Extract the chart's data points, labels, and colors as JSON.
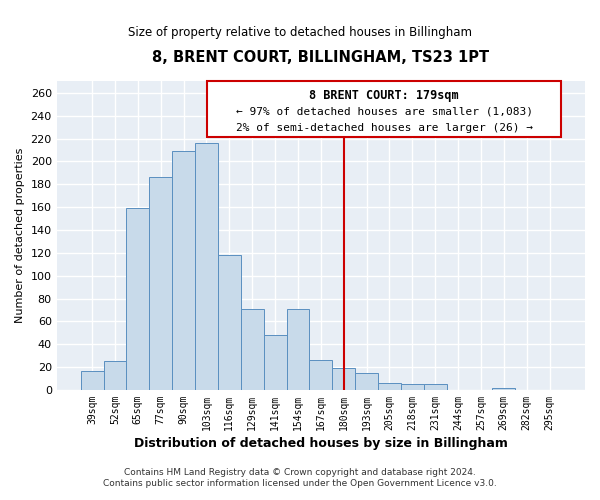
{
  "title": "8, BRENT COURT, BILLINGHAM, TS23 1PT",
  "subtitle": "Size of property relative to detached houses in Billingham",
  "xlabel": "Distribution of detached houses by size in Billingham",
  "ylabel": "Number of detached properties",
  "bar_labels": [
    "39sqm",
    "52sqm",
    "65sqm",
    "77sqm",
    "90sqm",
    "103sqm",
    "116sqm",
    "129sqm",
    "141sqm",
    "154sqm",
    "167sqm",
    "180sqm",
    "193sqm",
    "205sqm",
    "218sqm",
    "231sqm",
    "244sqm",
    "257sqm",
    "269sqm",
    "282sqm",
    "295sqm"
  ],
  "bar_heights": [
    17,
    25,
    159,
    186,
    209,
    216,
    118,
    71,
    48,
    71,
    26,
    19,
    15,
    6,
    5,
    5,
    0,
    0,
    2,
    0,
    0
  ],
  "bar_color": "#c8daea",
  "bar_edge_color": "#5a8fc0",
  "vline_color": "#cc0000",
  "vline_x_index": 11,
  "ylim": [
    0,
    270
  ],
  "yticks": [
    0,
    20,
    40,
    60,
    80,
    100,
    120,
    140,
    160,
    180,
    200,
    220,
    240,
    260
  ],
  "annotation_title": "8 BRENT COURT: 179sqm",
  "annotation_line1": "← 97% of detached houses are smaller (1,083)",
  "annotation_line2": "2% of semi-detached houses are larger (26) →",
  "footer1": "Contains HM Land Registry data © Crown copyright and database right 2024.",
  "footer2": "Contains public sector information licensed under the Open Government Licence v3.0.",
  "background_color": "#ffffff",
  "plot_background_color": "#e8eef5",
  "grid_color": "#ffffff"
}
